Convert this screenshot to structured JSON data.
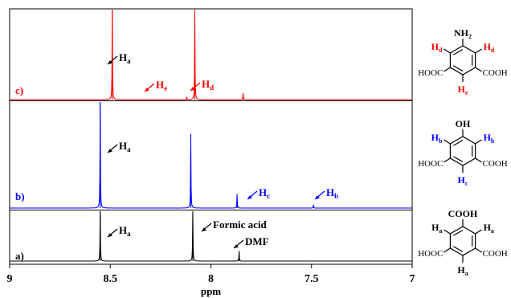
{
  "chart_data": {
    "type": "line",
    "title": "",
    "xlabel": "ppm",
    "xlim": [
      9,
      7
    ],
    "x_reversed": true,
    "xticks": [
      "9",
      "8.5",
      "8",
      "7.5",
      "7"
    ],
    "grid": false,
    "series": [
      {
        "label": "c)",
        "color": "#ff0000",
        "peaks": [
          {
            "ppm": 8.49,
            "intensity": 1.0
          },
          {
            "ppm": 8.12,
            "intensity": 0.03
          },
          {
            "ppm": 8.08,
            "intensity": 1.0
          },
          {
            "ppm": 7.84,
            "intensity": 0.07
          }
        ],
        "annotations": [
          {
            "main": "H",
            "sub": "a",
            "color": "#000000",
            "ppm": 8.49
          },
          {
            "main": "H",
            "sub": "e",
            "color": "#ff0000",
            "ppm": 8.33
          },
          {
            "main": "H",
            "sub": "d",
            "color": "#ff0000",
            "ppm": 8.12
          }
        ]
      },
      {
        "label": "b)",
        "color": "#0000ff",
        "peaks": [
          {
            "ppm": 8.55,
            "intensity": 1.0
          },
          {
            "ppm": 8.1,
            "intensity": 0.7
          },
          {
            "ppm": 7.87,
            "intensity": 0.13
          },
          {
            "ppm": 7.49,
            "intensity": 0.03
          }
        ],
        "annotations": [
          {
            "main": "H",
            "sub": "a",
            "color": "#000000",
            "ppm": 8.55
          },
          {
            "main": "H",
            "sub": "c",
            "color": "#0000ff",
            "ppm": 7.86
          },
          {
            "main": "H",
            "sub": "b",
            "color": "#0000ff",
            "ppm": 7.5
          }
        ]
      },
      {
        "label": "a)",
        "color": "#000000",
        "peaks": [
          {
            "ppm": 8.55,
            "intensity": 1.0
          },
          {
            "ppm": 8.09,
            "intensity": 1.0
          },
          {
            "ppm": 7.86,
            "intensity": 0.2
          }
        ],
        "annotations": [
          {
            "main": "H",
            "sub": "a",
            "color": "#000000",
            "ppm": 8.55
          },
          {
            "main": "Formic acid",
            "sub": "",
            "color": "#000000",
            "ppm": 8.09
          },
          {
            "main": "DMF",
            "sub": "",
            "color": "#000000",
            "ppm": 7.86
          }
        ]
      }
    ]
  },
  "structures": {
    "c": {
      "top": {
        "main": "NH",
        "sub": "2"
      },
      "left_h": {
        "main": "H",
        "sub": "d",
        "color": "#ff0000"
      },
      "right_h": {
        "main": "H",
        "sub": "d",
        "color": "#ff0000"
      },
      "left_group": "HOOC",
      "right_group": "COOH",
      "bottom_h": {
        "main": "H",
        "sub": "e",
        "color": "#ff0000"
      }
    },
    "b": {
      "top": {
        "main": "OH",
        "sub": ""
      },
      "left_h": {
        "main": "H",
        "sub": "b",
        "color": "#0000ff"
      },
      "right_h": {
        "main": "H",
        "sub": "b",
        "color": "#0000ff"
      },
      "left_group": "HOOC",
      "right_group": "COOH",
      "bottom_h": {
        "main": "H",
        "sub": "c",
        "color": "#0000ff"
      }
    },
    "a": {
      "top": {
        "main": "COOH",
        "sub": ""
      },
      "left_h": {
        "main": "H",
        "sub": "a",
        "color": "#000000"
      },
      "right_h": {
        "main": "H",
        "sub": "a",
        "color": "#000000"
      },
      "left_group": "HOOC",
      "right_group": "COOH",
      "bottom_h": {
        "main": "H",
        "sub": "a",
        "color": "#000000"
      }
    }
  }
}
